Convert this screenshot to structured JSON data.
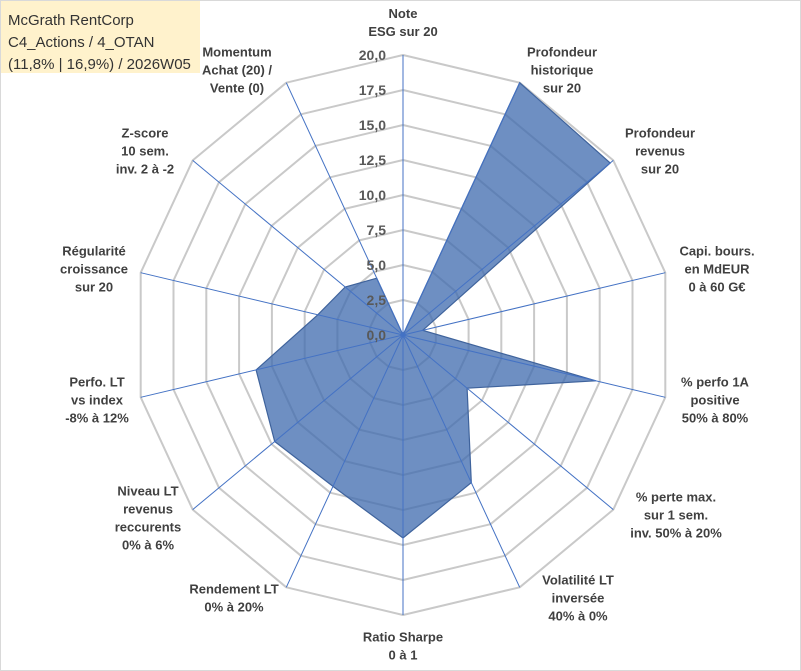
{
  "colors": {
    "title_bg": "#FFF2CC",
    "title_text": "#333333",
    "series_fill": "#3D6AAE",
    "series_stroke": "#3F639C",
    "spoke": "#4472C4",
    "grid": "#C9C9C9",
    "label_text": "#404040",
    "tick_text": "#595959",
    "frame": "#D9D9D9"
  },
  "chart_data": {
    "type": "radar",
    "title": [
      "McGrath RentCorp",
      "C4_Actions / 4_OTAN",
      "(11,8% | 16,9%) / 2026W05"
    ],
    "categories": [
      [
        "Note",
        "ESG sur 20"
      ],
      [
        "Profondeur",
        "historique",
        "sur 20"
      ],
      [
        "Profondeur",
        "revenus",
        "sur 20"
      ],
      [
        "Capi. bours.",
        "en MdEUR",
        "0 à 60 G€"
      ],
      [
        "% perfo 1A",
        "positive",
        "50% à 80%"
      ],
      [
        "% perte max.",
        "sur 1 sem.",
        "inv. 50% à 20%"
      ],
      [
        "Volatilité LT",
        "inversée",
        "40% à 0%"
      ],
      [
        "Ratio Sharpe",
        "0 à 1"
      ],
      [
        "Rendement LT",
        "0% à 20%"
      ],
      [
        "Niveau LT",
        "revenus",
        "reccurents",
        "0% à 6%"
      ],
      [
        "Perfo. LT",
        "vs index",
        "-8% à 12%"
      ],
      [
        "Régularité",
        "croissance",
        "sur 20"
      ],
      [
        "Z-score",
        "10 sem.",
        "inv. 2 à -2"
      ],
      [
        "Momentum",
        "Achat (20) /",
        "Vente (0)"
      ]
    ],
    "r_lim": [
      0,
      20
    ],
    "r_ticks": [
      0,
      2.5,
      5,
      7.5,
      10,
      12.5,
      15,
      17.5,
      20
    ],
    "r_tick_labels": [
      "0,0",
      "2,5",
      "5,0",
      "7,5",
      "10,0",
      "12,5",
      "15,0",
      "17,5",
      "20,0"
    ],
    "grid": true,
    "series": [
      {
        "values": [
          0,
          20,
          19.7,
          1.5,
          14.7,
          6.1,
          11.7,
          14.5,
          12.0,
          12.2,
          11.2,
          6.5,
          5.5,
          4.5
        ]
      }
    ]
  }
}
